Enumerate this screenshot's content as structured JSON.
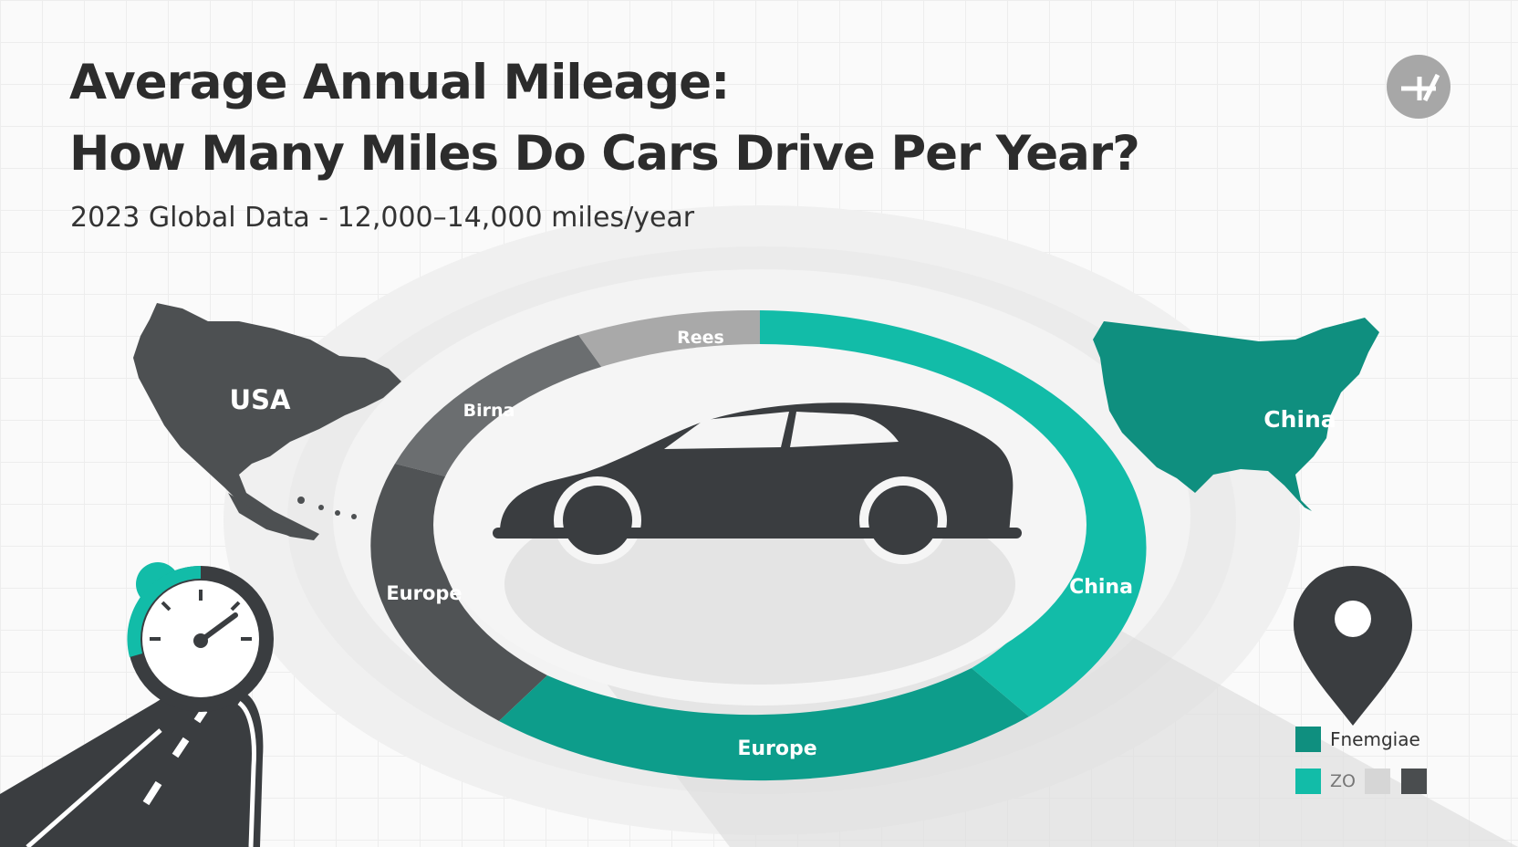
{
  "header": {
    "title_line1": "Average Annual Mileage:",
    "title_line2": "How Many Miles Do Cars Drive Per Year?",
    "subtitle": "2023 Global Data - 12,000–14,000 miles/year"
  },
  "corner_button": {
    "icon": "expand-icon"
  },
  "maps": {
    "left_label": "USA",
    "right_label": "China"
  },
  "ring_segments": [
    {
      "label": "Rees",
      "color": "#a9a9a9"
    },
    {
      "label": "Birna",
      "color": "#6b6e70"
    },
    {
      "label": "Europe",
      "color": "#505355"
    },
    {
      "label": "Europe",
      "color": "#0d9d8b"
    },
    {
      "label": "China",
      "color": "#12bca8"
    }
  ],
  "icons": {
    "car": "car-icon",
    "speedometer": "speedometer-icon",
    "road": "road-icon",
    "pin": "location-pin-icon"
  },
  "legend": {
    "item1_label": "Fnemgiae",
    "item2_label": "ZO",
    "colors": [
      "#0f8f7f",
      "#12bca8",
      "#d6d6d6",
      "#4a4d4f"
    ]
  },
  "colors": {
    "dark": "#3a3d40",
    "teal": "#12bca8",
    "teal_dark": "#0d9d8b",
    "gray": "#a9a9a9"
  }
}
